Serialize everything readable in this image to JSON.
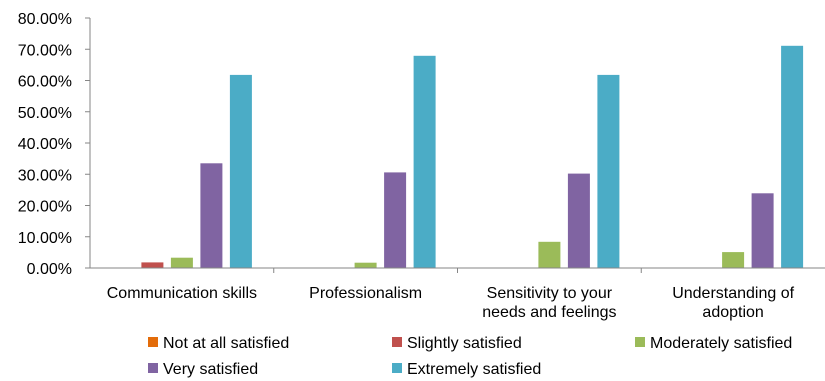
{
  "chart_data": {
    "type": "bar",
    "title": "",
    "xlabel": "",
    "ylabel": "",
    "ylim": [
      0,
      80
    ],
    "y_tick_format": "percent_2dp",
    "y_ticks": [
      "0.00%",
      "10.00%",
      "20.00%",
      "30.00%",
      "40.00%",
      "50.00%",
      "60.00%",
      "70.00%",
      "80.00%"
    ],
    "categories": [
      [
        "Communication skills"
      ],
      [
        "Professionalism"
      ],
      [
        "Sensitivity to your",
        "needs and feelings"
      ],
      [
        "Understanding of",
        "adoption"
      ]
    ],
    "series": [
      {
        "name": "Not at all satisfied",
        "color": "#E36C0A",
        "values": [
          0,
          0,
          0,
          0
        ]
      },
      {
        "name": "Slightly satisfied",
        "color": "#C0504D",
        "values": [
          1.8,
          0,
          0,
          0
        ]
      },
      {
        "name": "Moderately satisfied",
        "color": "#9BBB59",
        "values": [
          3.3,
          1.7,
          8.4,
          5.1
        ]
      },
      {
        "name": "Very satisfied",
        "color": "#8064A2",
        "values": [
          33.5,
          30.6,
          30.2,
          23.9
        ]
      },
      {
        "name": "Extremely satisfied",
        "color": "#4BACC6",
        "values": [
          61.8,
          67.9,
          61.8,
          71.1
        ]
      }
    ],
    "grid": false,
    "legend_position": "bottom"
  }
}
